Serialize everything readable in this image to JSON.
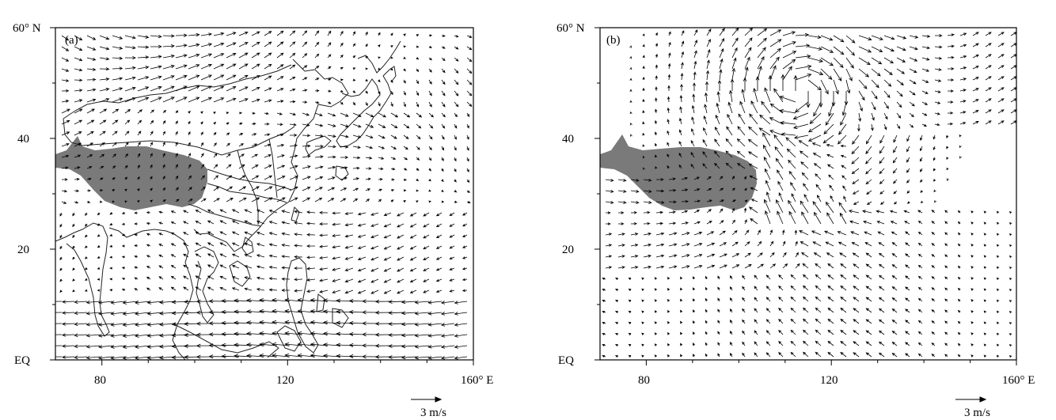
{
  "panels": [
    {
      "id": "a",
      "label": "(a)",
      "lat_ticks": [
        "EQ",
        "20",
        "40",
        "60° N"
      ],
      "lon_ticks": [
        "80",
        "120",
        "160° E"
      ],
      "reference_vector": "3 m/s",
      "shading_color": "#7a7a7a"
    },
    {
      "id": "b",
      "label": "(b)",
      "lat_ticks": [
        "EQ",
        "20",
        "40",
        "60° N"
      ],
      "lon_ticks": [
        "80",
        "120",
        "160° E"
      ],
      "reference_vector": "3 m/s",
      "shading_color": "#7a7a7a"
    }
  ],
  "map": {
    "lon_range": [
      70,
      160
    ],
    "lat_range": [
      0,
      60
    ],
    "shaded_region": "Tibetan Plateau",
    "wind_vectors": "shown",
    "coastlines_panel_a": true,
    "coastlines_panel_b": false
  }
}
